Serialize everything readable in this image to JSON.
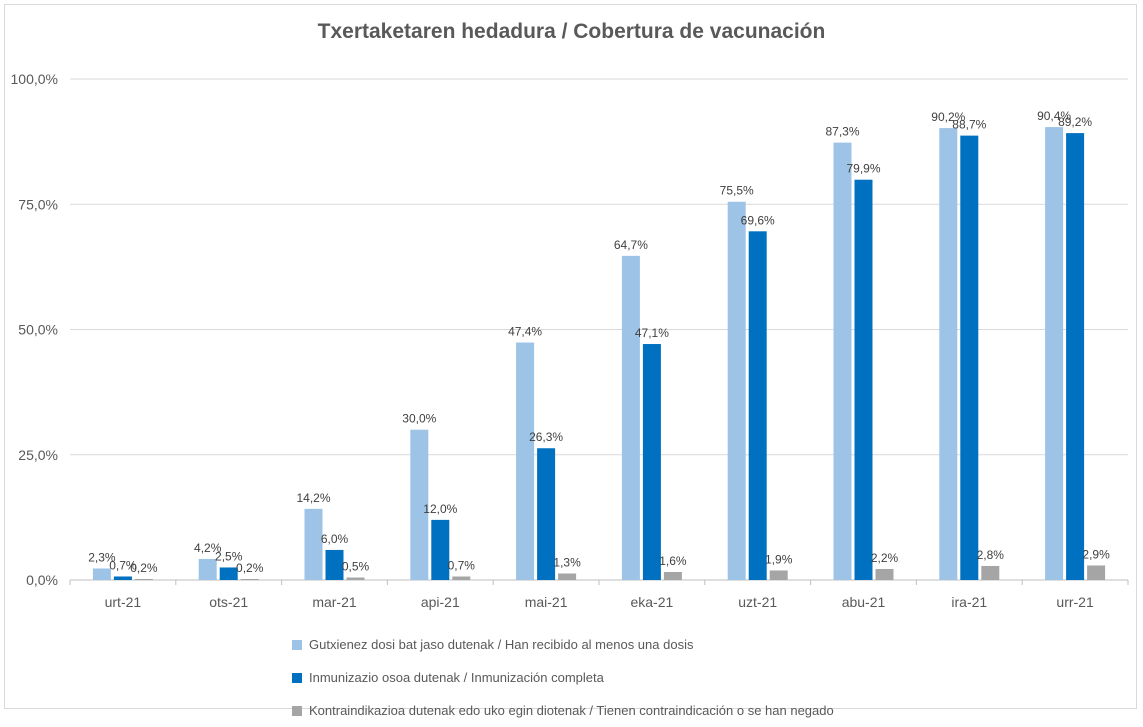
{
  "chart_data": {
    "type": "bar",
    "title": "Txertaketaren hedadura / Cobertura de vacunación",
    "categories": [
      "urt-21",
      "ots-21",
      "mar-21",
      "api-21",
      "mai-21",
      "eka-21",
      "uzt-21",
      "abu-21",
      "ira-21",
      "urr-21"
    ],
    "y_ticks": [
      "0,0%",
      "25,0%",
      "50,0%",
      "75,0%",
      "100,0%"
    ],
    "ylim": [
      0,
      100
    ],
    "grid": true,
    "legend_position": "bottom",
    "series": [
      {
        "name": "Gutxienez dosi bat jaso dutenak / Han recibido al menos una dosis",
        "color": "#9dc3e6",
        "values": [
          2.3,
          4.2,
          14.2,
          30.0,
          47.4,
          64.7,
          75.5,
          87.3,
          90.2,
          90.4
        ],
        "labels": [
          "2,3%",
          "4,2%",
          "14,2%",
          "30,0%",
          "47,4%",
          "64,7%",
          "75,5%",
          "87,3%",
          "90,2%",
          "90,4%"
        ]
      },
      {
        "name": "Inmunizazio osoa dutenak / Inmunización completa",
        "color": "#0070c0",
        "values": [
          0.7,
          2.5,
          6.0,
          12.0,
          26.3,
          47.1,
          69.6,
          79.9,
          88.7,
          89.2
        ],
        "labels": [
          "0,7%",
          "2,5%",
          "6,0%",
          "12,0%",
          "26,3%",
          "47,1%",
          "69,6%",
          "79,9%",
          "88,7%",
          "89,2%"
        ]
      },
      {
        "name": "Kontraindikazioa dutenak edo uko egin diotenak / Tienen contraindicación o se han negado",
        "color": "#a5a5a5",
        "values": [
          0.2,
          0.2,
          0.5,
          0.7,
          1.3,
          1.6,
          1.9,
          2.2,
          2.8,
          2.9
        ],
        "labels": [
          "0,2%",
          "0,2%",
          "0,5%",
          "0,7%",
          "1,3%",
          "1,6%",
          "1,9%",
          "2,2%",
          "2,8%",
          "2,9%"
        ]
      }
    ]
  }
}
